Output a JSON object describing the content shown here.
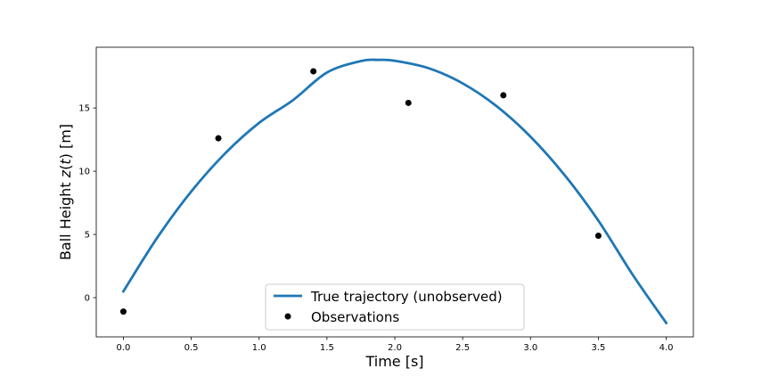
{
  "chart_data": {
    "type": "line",
    "title": "",
    "xlabel": "Time [s]",
    "ylabel_prefix": "Ball Height ",
    "ylabel_var": "z",
    "ylabel_paren_open": "(",
    "ylabel_t": "t",
    "ylabel_suffix": ") [m]",
    "xlim": [
      -0.2,
      4.2
    ],
    "ylim": [
      -3.1,
      19.8
    ],
    "xticks": [
      0.0,
      0.5,
      1.0,
      1.5,
      2.0,
      2.5,
      3.0,
      3.5,
      4.0
    ],
    "xtick_labels": [
      "0.0",
      "0.5",
      "1.0",
      "1.5",
      "2.0",
      "2.5",
      "3.0",
      "3.5",
      "4.0"
    ],
    "yticks": [
      0,
      5,
      10,
      15
    ],
    "ytick_labels": [
      "0",
      "5",
      "10",
      "15"
    ],
    "grid": false,
    "legend_position": "bottom-center",
    "series": [
      {
        "name": "True trajectory (unobserved)",
        "kind": "line",
        "color": "#1f77b4",
        "x": [
          0.0,
          0.25,
          0.5,
          0.75,
          1.0,
          1.25,
          1.5,
          1.75,
          1.875,
          2.0,
          2.25,
          2.5,
          2.75,
          3.0,
          3.25,
          3.5,
          3.75,
          4.0
        ],
        "y": [
          0.5,
          4.75,
          8.39,
          11.41,
          13.82,
          15.62,
          17.8,
          18.71,
          18.8,
          18.73,
          18.14,
          16.94,
          15.14,
          12.73,
          9.71,
          6.09,
          1.86,
          -2.0
        ]
      },
      {
        "name": "Observations",
        "kind": "scatter",
        "color": "#000000",
        "x": [
          0.0,
          0.7,
          1.4,
          2.1,
          2.8,
          3.5
        ],
        "y": [
          -1.1,
          12.6,
          17.9,
          15.4,
          16.0,
          4.9
        ]
      }
    ]
  }
}
